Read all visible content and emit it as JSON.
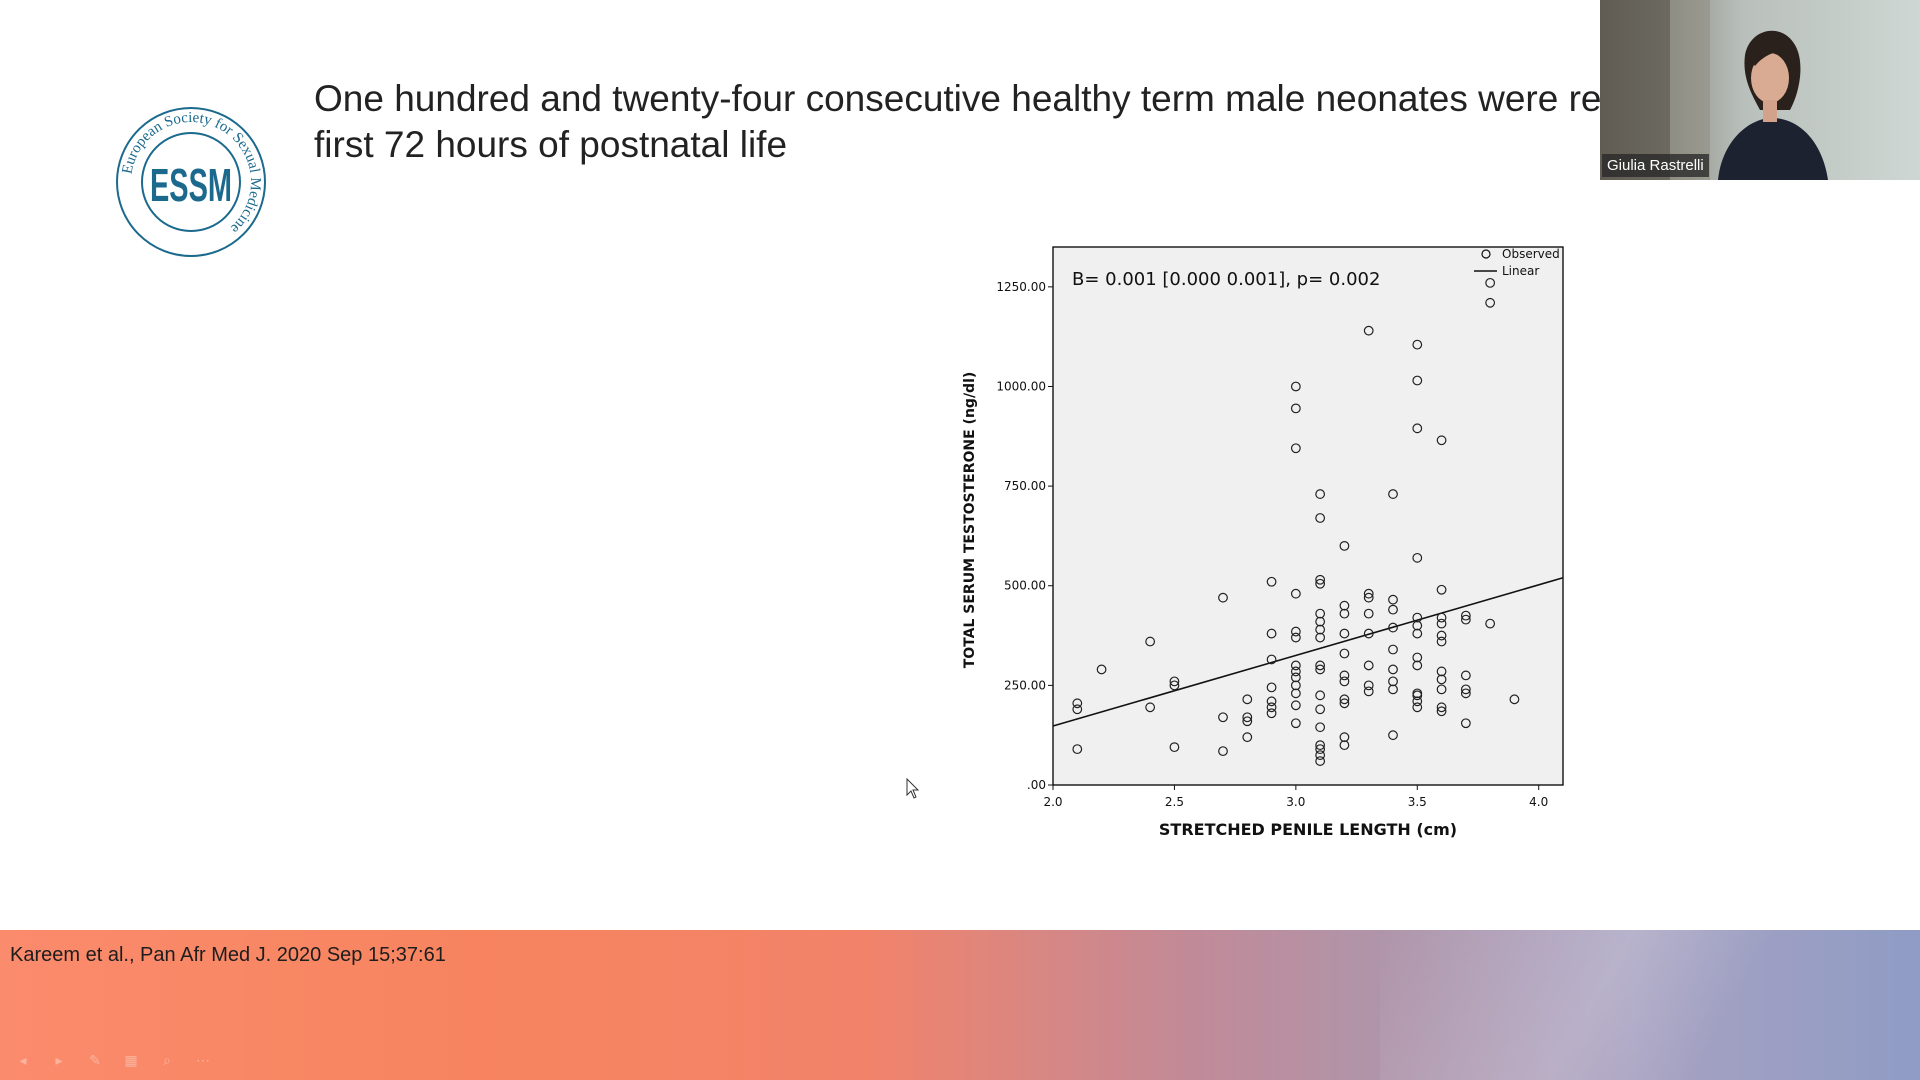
{
  "slide": {
    "title_line1": "One hundred and twenty-four consecutive healthy term male neonates were re",
    "title_line2": "first 72 hours of postnatal life",
    "logo": {
      "ring_text": "European Society for Sexual Medicine",
      "letters": "ESSM",
      "color": "#1b6a8e"
    },
    "citation": "Kareem et al., Pan Afr Med J. 2020 Sep 15;37:61"
  },
  "video": {
    "participant_name": "Giulia Rastrelli"
  },
  "toolbar": {
    "icons": [
      "prev-icon",
      "next-icon",
      "pen-icon",
      "grid-icon",
      "zoom-icon",
      "more-icon"
    ],
    "glyphs": [
      "◂",
      "▸",
      "✎",
      "▦",
      "⌕",
      "⋯"
    ]
  },
  "chart_data": {
    "type": "scatter",
    "annotation": "B= 0.001 [0.000 0.001], p= 0.002",
    "xlabel": "STRETCHED PENILE LENGTH (cm)",
    "ylabel": "TOTAL SERUM TESTOSTERONE (ng/dl)",
    "xlim": [
      2.0,
      4.1
    ],
    "ylim": [
      0,
      1350
    ],
    "xticks": [
      2.0,
      2.5,
      3.0,
      3.5,
      4.0
    ],
    "xtick_labels": [
      "2.0",
      "2.5",
      "3.0",
      "3.5",
      "4.0"
    ],
    "yticks": [
      0,
      250,
      500,
      750,
      1000,
      1250
    ],
    "ytick_labels": [
      ".00",
      "250.00",
      "500.00",
      "750.00",
      "1000.00",
      "1250.00"
    ],
    "legend": [
      {
        "name": "Observed",
        "symbol": "circle"
      },
      {
        "name": "Linear",
        "symbol": "line"
      }
    ],
    "legend_position": "top-right",
    "background": "#f0f0f0",
    "grid": false,
    "fit_line": {
      "x": [
        2.0,
        4.1
      ],
      "y": [
        148,
        520
      ]
    },
    "points": [
      [
        2.1,
        90
      ],
      [
        2.1,
        190
      ],
      [
        2.1,
        205
      ],
      [
        2.2,
        290
      ],
      [
        2.4,
        195
      ],
      [
        2.4,
        360
      ],
      [
        2.5,
        95
      ],
      [
        2.5,
        250
      ],
      [
        2.5,
        260
      ],
      [
        2.7,
        85
      ],
      [
        2.7,
        170
      ],
      [
        2.7,
        470
      ],
      [
        2.8,
        120
      ],
      [
        2.8,
        160
      ],
      [
        2.8,
        170
      ],
      [
        2.8,
        215
      ],
      [
        2.9,
        180
      ],
      [
        2.9,
        195
      ],
      [
        2.9,
        210
      ],
      [
        2.9,
        245
      ],
      [
        2.9,
        315
      ],
      [
        2.9,
        380
      ],
      [
        2.9,
        510
      ],
      [
        3.0,
        155
      ],
      [
        3.0,
        200
      ],
      [
        3.0,
        230
      ],
      [
        3.0,
        250
      ],
      [
        3.0,
        270
      ],
      [
        3.0,
        285
      ],
      [
        3.0,
        300
      ],
      [
        3.0,
        370
      ],
      [
        3.0,
        385
      ],
      [
        3.0,
        480
      ],
      [
        3.0,
        845
      ],
      [
        3.0,
        945
      ],
      [
        3.0,
        1000
      ],
      [
        3.1,
        60
      ],
      [
        3.1,
        75
      ],
      [
        3.1,
        90
      ],
      [
        3.1,
        100
      ],
      [
        3.1,
        145
      ],
      [
        3.1,
        190
      ],
      [
        3.1,
        225
      ],
      [
        3.1,
        290
      ],
      [
        3.1,
        300
      ],
      [
        3.1,
        370
      ],
      [
        3.1,
        390
      ],
      [
        3.1,
        410
      ],
      [
        3.1,
        430
      ],
      [
        3.1,
        505
      ],
      [
        3.1,
        515
      ],
      [
        3.1,
        670
      ],
      [
        3.1,
        730
      ],
      [
        3.2,
        100
      ],
      [
        3.2,
        120
      ],
      [
        3.2,
        205
      ],
      [
        3.2,
        215
      ],
      [
        3.2,
        260
      ],
      [
        3.2,
        275
      ],
      [
        3.2,
        330
      ],
      [
        3.2,
        380
      ],
      [
        3.2,
        430
      ],
      [
        3.2,
        450
      ],
      [
        3.2,
        600
      ],
      [
        3.3,
        235
      ],
      [
        3.3,
        250
      ],
      [
        3.3,
        300
      ],
      [
        3.3,
        380
      ],
      [
        3.3,
        430
      ],
      [
        3.3,
        470
      ],
      [
        3.3,
        480
      ],
      [
        3.3,
        1140
      ],
      [
        3.4,
        125
      ],
      [
        3.4,
        240
      ],
      [
        3.4,
        260
      ],
      [
        3.4,
        290
      ],
      [
        3.4,
        340
      ],
      [
        3.4,
        395
      ],
      [
        3.4,
        440
      ],
      [
        3.4,
        465
      ],
      [
        3.4,
        730
      ],
      [
        3.5,
        195
      ],
      [
        3.5,
        210
      ],
      [
        3.5,
        225
      ],
      [
        3.5,
        230
      ],
      [
        3.5,
        300
      ],
      [
        3.5,
        320
      ],
      [
        3.5,
        380
      ],
      [
        3.5,
        400
      ],
      [
        3.5,
        420
      ],
      [
        3.5,
        570
      ],
      [
        3.5,
        895
      ],
      [
        3.5,
        1015
      ],
      [
        3.5,
        1105
      ],
      [
        3.6,
        185
      ],
      [
        3.6,
        195
      ],
      [
        3.6,
        240
      ],
      [
        3.6,
        265
      ],
      [
        3.6,
        285
      ],
      [
        3.6,
        360
      ],
      [
        3.6,
        375
      ],
      [
        3.6,
        405
      ],
      [
        3.6,
        420
      ],
      [
        3.6,
        490
      ],
      [
        3.6,
        865
      ],
      [
        3.7,
        155
      ],
      [
        3.7,
        230
      ],
      [
        3.7,
        240
      ],
      [
        3.7,
        275
      ],
      [
        3.7,
        415
      ],
      [
        3.7,
        425
      ],
      [
        3.8,
        405
      ],
      [
        3.8,
        1210
      ],
      [
        3.8,
        1260
      ],
      [
        3.9,
        215
      ]
    ]
  }
}
